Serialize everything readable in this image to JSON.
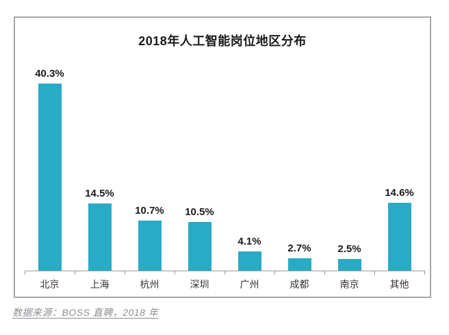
{
  "chart_data": {
    "type": "bar",
    "title": "2018年人工智能岗位地区分布",
    "categories": [
      "北京",
      "上海",
      "杭州",
      "深圳",
      "广州",
      "成都",
      "南京",
      "其他"
    ],
    "values": [
      40.3,
      14.5,
      10.7,
      10.5,
      4.1,
      2.7,
      2.5,
      14.6
    ],
    "value_labels": [
      "40.3%",
      "14.5%",
      "10.7%",
      "10.5%",
      "4.1%",
      "2.7%",
      "2.5%",
      "14.6%"
    ],
    "unit": "%",
    "xlabel": "",
    "ylabel": "",
    "ylim": [
      0,
      46
    ],
    "grid": false,
    "legend_position": "none",
    "bar_color": "#29abc5"
  },
  "footer": {
    "source_text": "数据来源：BOSS 直聘，2018 年"
  },
  "colors": {
    "bar": "#29abc5",
    "frame_border": "#a8a8a8",
    "axis": "#9b9b9b",
    "title_text": "#1a1a1a",
    "category_text": "#333333",
    "source_text": "#8d8e94",
    "background": "#ffffff"
  }
}
